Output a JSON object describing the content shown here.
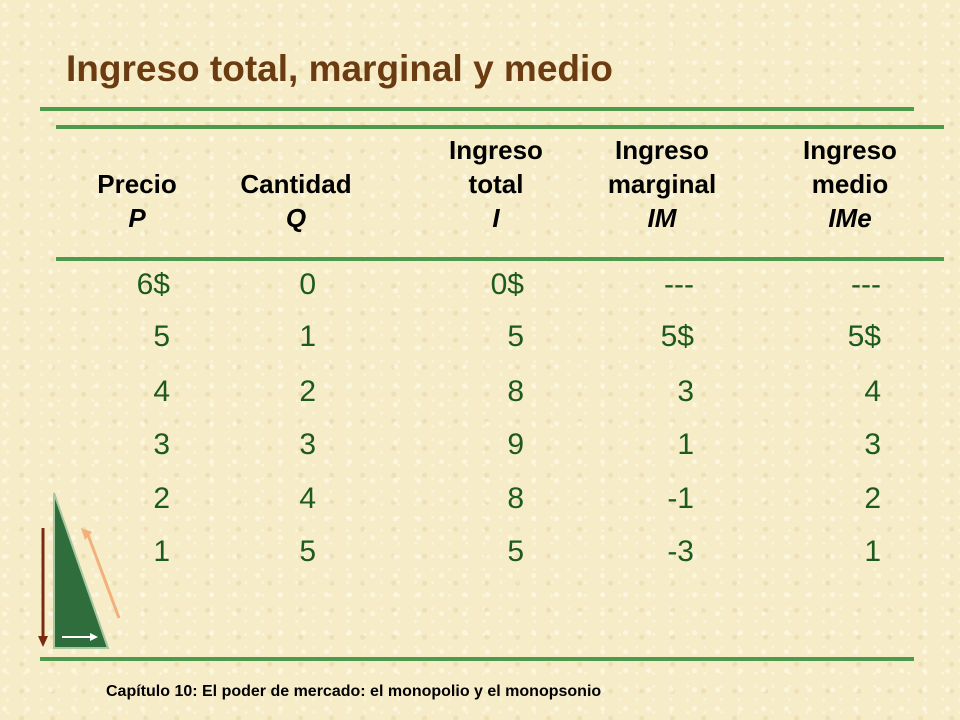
{
  "title": "Ingreso total, marginal y medio",
  "headers": [
    {
      "l1": "",
      "l2": "Precio",
      "sym": "P"
    },
    {
      "l1": "",
      "l2": "Cantidad",
      "sym": "Q"
    },
    {
      "l1": "Ingreso",
      "l2": "total",
      "sym": "I"
    },
    {
      "l1": "Ingreso",
      "l2": "marginal",
      "sym": "IM"
    },
    {
      "l1": "Ingreso",
      "l2": "medio",
      "sym": "IMe"
    }
  ],
  "rows": [
    [
      "6$",
      "0",
      "0$",
      "---",
      "---"
    ],
    [
      "5",
      "1",
      "5",
      "5$",
      "5$"
    ],
    [
      "4",
      "2",
      "8",
      "3",
      "4"
    ],
    [
      "3",
      "3",
      "9",
      "1",
      "3"
    ],
    [
      "2",
      "4",
      "8",
      "-1",
      "2"
    ],
    [
      "1",
      "5",
      "5",
      "-3",
      "1"
    ]
  ],
  "footer": "Capítulo 10: El poder de mercado: el monopolio y el monopsonio",
  "colors": {
    "title": "#6b3b12",
    "rules": "#4d9a4d",
    "values": "#1d5a1d",
    "background": "#f6ecc8"
  },
  "icons": [
    "navigation-arrows-icon"
  ]
}
